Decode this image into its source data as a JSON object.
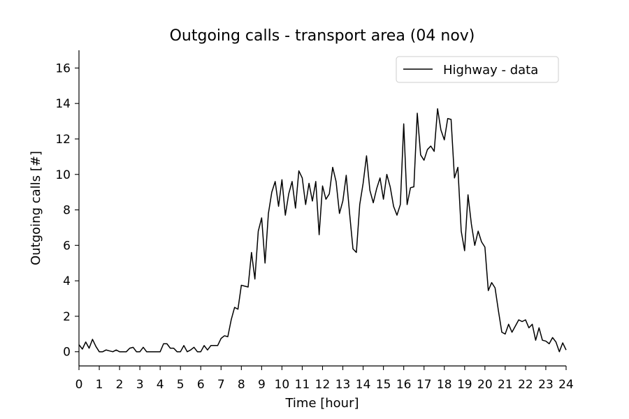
{
  "chart_data": {
    "type": "line",
    "title": "Outgoing calls - transport area (04 nov)",
    "xlabel": "Time [hour]",
    "ylabel": "Outgoing calls [#]",
    "xlim": [
      0,
      24
    ],
    "ylim": [
      -0.8,
      17
    ],
    "x_ticks": [
      "0",
      "1",
      "2",
      "3",
      "4",
      "5",
      "6",
      "7",
      "8",
      "9",
      "10",
      "11",
      "12",
      "13",
      "14",
      "15",
      "16",
      "17",
      "18",
      "19",
      "20",
      "21",
      "22",
      "23",
      "24"
    ],
    "y_ticks": [
      "0",
      "2",
      "4",
      "6",
      "8",
      "10",
      "12",
      "14",
      "16"
    ],
    "grid": false,
    "legend": "top-right",
    "series": [
      {
        "name": "Highway - data",
        "color": "#000000",
        "x": [
          0,
          0.167,
          0.333,
          0.5,
          0.667,
          0.833,
          1,
          1.167,
          1.333,
          1.5,
          1.667,
          1.833,
          2,
          2.167,
          2.333,
          2.5,
          2.667,
          2.833,
          3,
          3.167,
          3.333,
          3.5,
          3.667,
          3.833,
          4,
          4.167,
          4.333,
          4.5,
          4.667,
          4.833,
          5,
          5.167,
          5.333,
          5.5,
          5.667,
          5.833,
          6,
          6.167,
          6.333,
          6.5,
          6.667,
          6.833,
          7,
          7.167,
          7.333,
          7.5,
          7.667,
          7.833,
          8,
          8.167,
          8.333,
          8.5,
          8.667,
          8.833,
          9,
          9.167,
          9.333,
          9.5,
          9.667,
          9.833,
          10,
          10.167,
          10.333,
          10.5,
          10.667,
          10.833,
          11,
          11.167,
          11.333,
          11.5,
          11.667,
          11.833,
          12,
          12.167,
          12.333,
          12.5,
          12.667,
          12.833,
          13,
          13.167,
          13.333,
          13.5,
          13.667,
          13.833,
          14,
          14.167,
          14.333,
          14.5,
          14.667,
          14.833,
          15,
          15.167,
          15.333,
          15.5,
          15.667,
          15.833,
          16,
          16.167,
          16.333,
          16.5,
          16.667,
          16.833,
          17,
          17.167,
          17.333,
          17.5,
          17.667,
          17.833,
          18,
          18.167,
          18.333,
          18.5,
          18.667,
          18.833,
          19,
          19.167,
          19.333,
          19.5,
          19.667,
          19.833,
          20,
          20.167,
          20.333,
          20.5,
          20.667,
          20.833,
          21,
          21.167,
          21.333,
          21.5,
          21.667,
          21.833,
          22,
          22.167,
          22.333,
          22.5,
          22.667,
          22.833,
          23,
          23.167,
          23.333,
          23.5,
          23.667,
          23.833,
          24
        ],
        "values": [
          0.4,
          0.15,
          0.55,
          0.2,
          0.7,
          0.3,
          0.0,
          0.0,
          0.1,
          0.05,
          0.0,
          0.1,
          0.0,
          0.0,
          0.0,
          0.2,
          0.25,
          0.0,
          0.0,
          0.25,
          0.0,
          0.0,
          0.0,
          0.0,
          0.0,
          0.45,
          0.45,
          0.2,
          0.2,
          0.0,
          0.0,
          0.35,
          0.0,
          0.1,
          0.25,
          0.0,
          0.0,
          0.35,
          0.1,
          0.35,
          0.35,
          0.35,
          0.75,
          0.9,
          0.85,
          1.8,
          2.5,
          2.4,
          3.75,
          3.7,
          3.65,
          5.6,
          4.1,
          6.8,
          7.55,
          5.0,
          7.8,
          9.0,
          9.6,
          8.2,
          9.7,
          7.7,
          8.9,
          9.6,
          8.1,
          10.2,
          9.8,
          8.3,
          9.5,
          8.5,
          9.6,
          6.6,
          9.35,
          8.6,
          8.9,
          10.4,
          9.6,
          7.8,
          8.5,
          9.95,
          7.8,
          5.8,
          5.6,
          8.3,
          9.5,
          11.05,
          9.1,
          8.4,
          9.2,
          9.8,
          8.6,
          10.0,
          9.3,
          8.2,
          7.7,
          8.3,
          12.85,
          8.3,
          9.25,
          9.3,
          13.45,
          11.1,
          10.8,
          11.4,
          11.6,
          11.3,
          13.7,
          12.5,
          11.95,
          13.15,
          13.1,
          9.8,
          10.4,
          6.8,
          5.7,
          8.85,
          7.2,
          6.0,
          6.8,
          6.2,
          5.9,
          3.45,
          3.9,
          3.6,
          2.3,
          1.1,
          1.0,
          1.55,
          1.1,
          1.45,
          1.8,
          1.7,
          1.8,
          1.35,
          1.55,
          0.65,
          1.35,
          0.65,
          0.6,
          0.45,
          0.8,
          0.55,
          0.0,
          0.5,
          0.1
        ]
      }
    ]
  }
}
